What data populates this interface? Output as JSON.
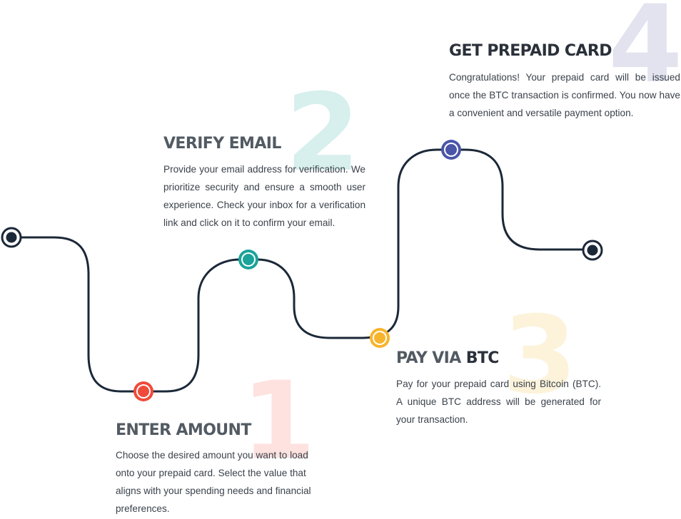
{
  "steps": [
    {
      "number": "1",
      "title": "ENTER AMOUNT",
      "description": "Choose the desired amount you want to load onto your prepaid card. Select the value that aligns with your spending needs and financial preferences.",
      "accent": "#f04a3a",
      "number_color": "#fde2df"
    },
    {
      "number": "2",
      "title": "VERIFY EMAIL",
      "description": "Provide your email address for verification. We prioritize security and ensure a smooth user experience. Check your inbox for a verification link and click on it to confirm your email.",
      "accent": "#19a39a",
      "number_color": "#d7efed"
    },
    {
      "number": "3",
      "title_prefix": "PAY VIA ",
      "title_emphasis": "BTC",
      "description": "Pay for your prepaid card using Bitcoin (BTC). A unique BTC address will be generated for your transaction.",
      "accent": "#f7b42c",
      "number_color": "#fdf3db"
    },
    {
      "number": "4",
      "title": "GET PREPAID CARD",
      "description": "Congratulations! Your prepaid card will be issued once the BTC transaction is confirmed. You now have a convenient and versatile payment option.",
      "accent": "#4a55a8",
      "number_color": "#e2e3ef"
    }
  ],
  "path_color": "#1b2838",
  "endpoint_color": "#1b2838"
}
